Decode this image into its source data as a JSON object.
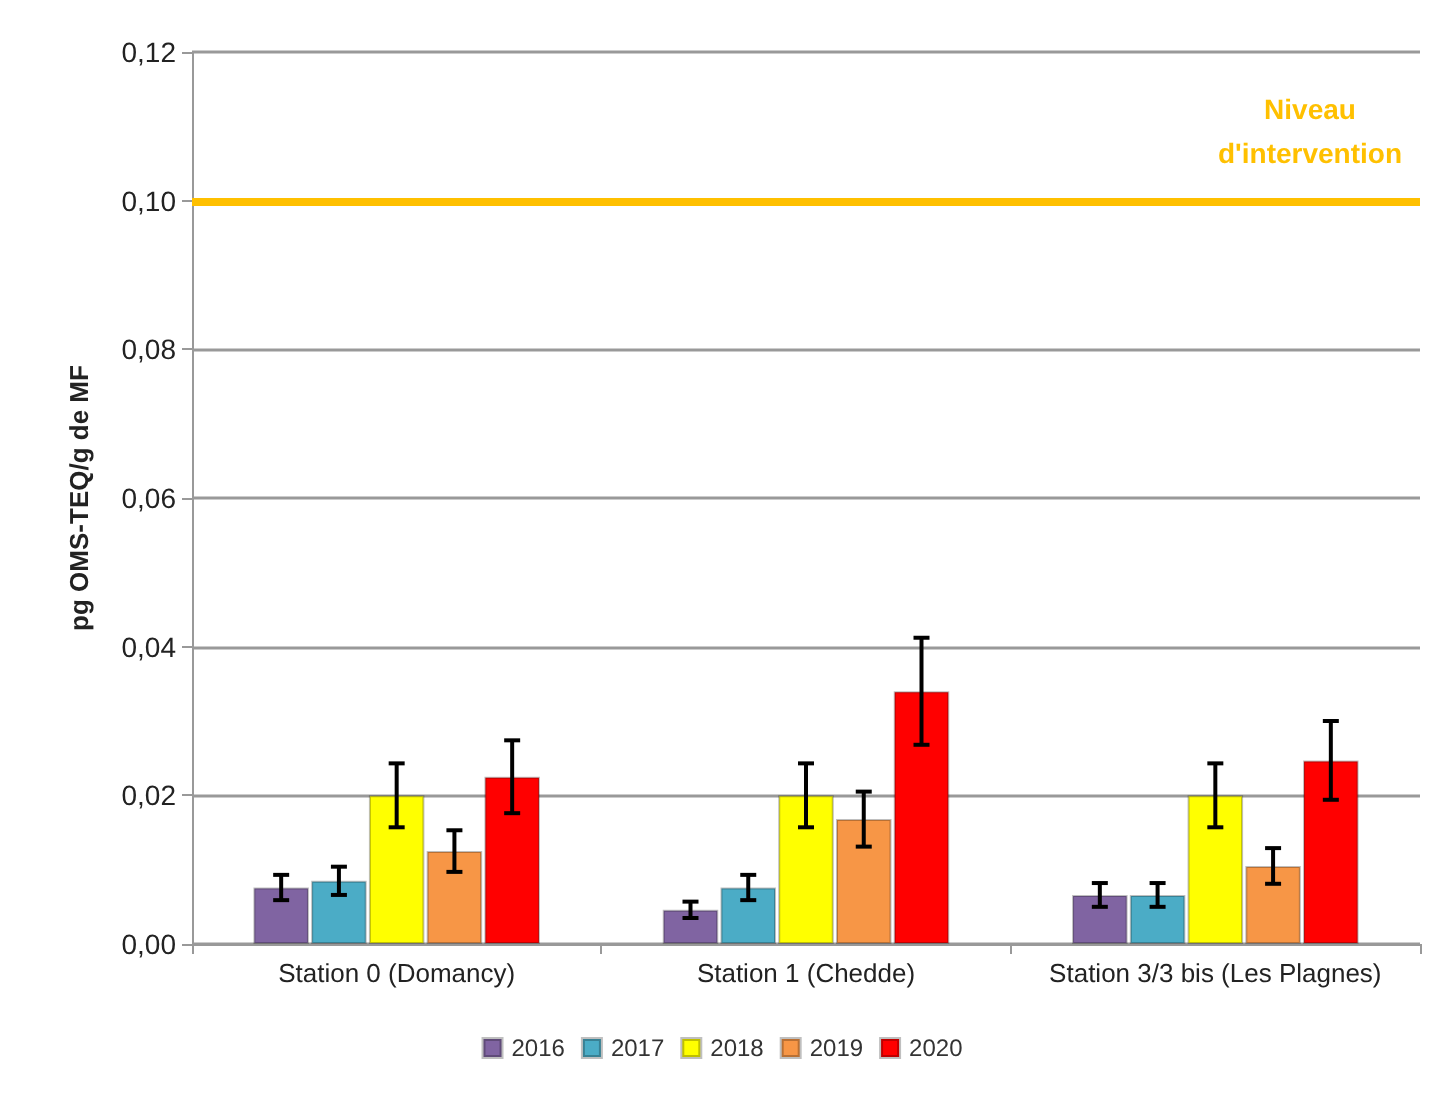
{
  "chart_data": {
    "type": "bar",
    "ylabel": "pg OMS-TEQ/g de MF",
    "categories": [
      "Station 0 (Domancy)",
      "Station 1 (Chedde)",
      "Station 3/3 bis (Les Plagnes)"
    ],
    "series": [
      {
        "name": "2016",
        "color": "#8064a2",
        "values": [
          0.0076,
          0.0046,
          0.0066
        ],
        "errors": [
          0.0017,
          0.0011,
          0.0016
        ]
      },
      {
        "name": "2017",
        "color": "#4bacc6",
        "values": [
          0.0085,
          0.0076,
          0.0066
        ],
        "errors": [
          0.0019,
          0.0017,
          0.0016
        ]
      },
      {
        "name": "2018",
        "color": "#ffff00",
        "values": [
          0.02,
          0.02,
          0.02
        ],
        "errors": [
          0.0043,
          0.0043,
          0.0043
        ]
      },
      {
        "name": "2019",
        "color": "#f79646",
        "values": [
          0.0125,
          0.0168,
          0.0105
        ],
        "errors": [
          0.0028,
          0.0037,
          0.0024
        ]
      },
      {
        "name": "2020",
        "color": "#ff0000",
        "values": [
          0.0225,
          0.034,
          0.0247
        ],
        "errors": [
          0.0049,
          0.0072,
          0.0053
        ]
      }
    ],
    "ylim": [
      0,
      0.12
    ],
    "yticks": [
      {
        "value": 0,
        "label": "0,00"
      },
      {
        "value": 0.02,
        "label": "0,02"
      },
      {
        "value": 0.04,
        "label": "0,04"
      },
      {
        "value": 0.06,
        "label": "0,06"
      },
      {
        "value": 0.08,
        "label": "0,08"
      },
      {
        "value": 0.1,
        "label": "0,10"
      },
      {
        "value": 0.12,
        "label": "0,12"
      }
    ],
    "ref_lines": [
      {
        "axis": "y",
        "value": 0.1,
        "label": "Niveau\nd'intervention",
        "color": "#ffc000"
      }
    ],
    "grid": "y",
    "legend": "bottom"
  }
}
